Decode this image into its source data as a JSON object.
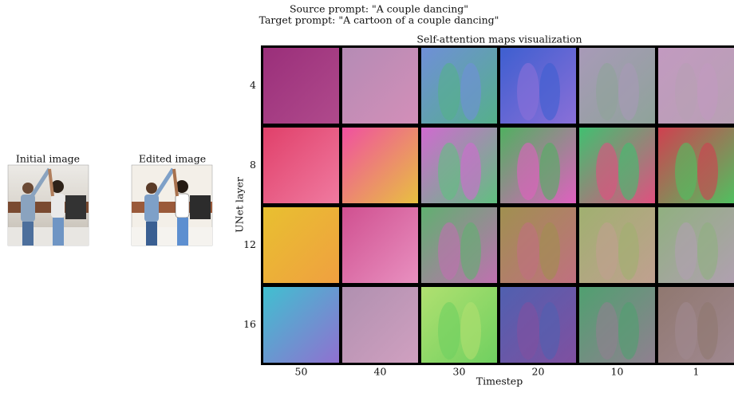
{
  "header": {
    "source_prompt": "Source prompt: \"A couple dancing\"",
    "target_prompt": "Target prompt: \"A cartoon of a couple dancing\""
  },
  "images": [
    {
      "label": "Initial image"
    },
    {
      "label": "Edited image"
    }
  ],
  "grid": {
    "title": "Self-attention maps visualization",
    "y_label": "UNet layer",
    "x_label": "Timestep",
    "rows": [
      "4",
      "8",
      "12",
      "16"
    ],
    "columns": [
      "50",
      "40",
      "30",
      "20",
      "10",
      "1"
    ]
  }
}
